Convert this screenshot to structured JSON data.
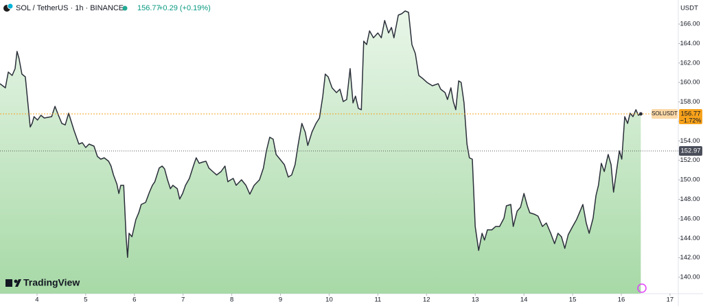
{
  "brand": "TradingView",
  "chart_data": {
    "type": "area",
    "symbol": "SOL / TetherUS · 1h · BINANCE",
    "change_label": "+0.29 (+0.19%)",
    "currency": "USDT",
    "series_label": "SOLUSDT",
    "last_price": 156.77,
    "last_change_label": "−1.72%",
    "reference_price": 152.97,
    "color": "#2a2e39",
    "x": [
      3.24,
      3.35,
      3.41,
      3.49,
      3.55,
      3.59,
      3.63,
      3.69,
      3.76,
      3.86,
      3.9,
      3.94,
      4.01,
      4.08,
      4.15,
      4.3,
      4.37,
      4.44,
      4.51,
      4.58,
      4.65,
      4.76,
      4.86,
      4.93,
      5.0,
      5.07,
      5.17,
      5.24,
      5.31,
      5.38,
      5.47,
      5.52,
      5.57,
      5.64,
      5.68,
      5.72,
      5.78,
      5.83,
      5.86,
      5.89,
      5.95,
      6.03,
      6.09,
      6.14,
      6.23,
      6.31,
      6.37,
      6.42,
      6.51,
      6.57,
      6.62,
      6.68,
      6.74,
      6.79,
      6.88,
      6.93,
      6.99,
      7.05,
      7.13,
      7.22,
      7.27,
      7.33,
      7.41,
      7.47,
      7.53,
      7.61,
      7.69,
      7.78,
      7.86,
      7.92,
      7.98,
      8.03,
      8.09,
      8.2,
      8.29,
      8.37,
      8.46,
      8.57,
      8.65,
      8.71,
      8.78,
      8.85,
      8.91,
      8.99,
      9.08,
      9.16,
      9.23,
      9.3,
      9.36,
      9.44,
      9.51,
      9.56,
      9.65,
      9.73,
      9.8,
      9.87,
      9.92,
      9.98,
      10.06,
      10.15,
      10.22,
      10.29,
      10.36,
      10.43,
      10.49,
      10.54,
      10.6,
      10.66,
      10.71,
      10.77,
      10.83,
      10.91,
      11.0,
      11.07,
      11.14,
      11.22,
      11.28,
      11.33,
      11.42,
      11.49,
      11.56,
      11.63,
      11.7,
      11.77,
      11.84,
      11.93,
      12.01,
      12.12,
      12.24,
      12.29,
      12.38,
      12.43,
      12.5,
      12.55,
      12.6,
      12.66,
      12.71,
      12.77,
      12.83,
      12.88,
      12.94,
      13.0,
      13.07,
      13.14,
      13.19,
      13.25,
      13.34,
      13.42,
      13.5,
      13.59,
      13.64,
      13.73,
      13.78,
      13.86,
      13.93,
      14.0,
      14.07,
      14.12,
      14.21,
      14.29,
      14.38,
      14.46,
      14.55,
      14.63,
      14.7,
      14.77,
      14.84,
      14.91,
      15.0,
      15.08,
      15.14,
      15.21,
      15.28,
      15.34,
      15.42,
      15.48,
      15.53,
      15.59,
      15.65,
      15.73,
      15.79,
      15.84,
      15.9,
      15.96,
      16.01,
      16.07,
      16.13,
      16.18,
      16.24,
      16.3,
      16.35,
      16.4
    ],
    "values": [
      159.87,
      159.45,
      161.07,
      160.72,
      161.42,
      163.19,
      162.48,
      160.86,
      160.58,
      155.43,
      155.79,
      156.49,
      156.14,
      156.63,
      156.35,
      156.49,
      157.55,
      156.63,
      155.79,
      155.64,
      156.84,
      155.08,
      153.67,
      153.81,
      153.32,
      153.67,
      153.46,
      152.4,
      152.12,
      152.26,
      151.91,
      151.42,
      150.5,
      149.58,
      148.6,
      149.44,
      149.44,
      144.16,
      142.04,
      144.51,
      144.16,
      145.92,
      146.62,
      147.47,
      147.68,
      148.74,
      149.44,
      149.8,
      151.21,
      151.42,
      151.13,
      150.01,
      149.09,
      149.44,
      149.09,
      148.03,
      148.6,
      149.44,
      150.15,
      151.56,
      152.26,
      151.7,
      151.84,
      151.91,
      151.21,
      150.85,
      150.5,
      150.85,
      151.42,
      149.8,
      150.01,
      150.15,
      149.44,
      150.01,
      149.44,
      148.53,
      149.44,
      150.01,
      151.21,
      152.97,
      154.38,
      154.17,
      152.61,
      152.12,
      151.56,
      150.29,
      150.5,
      151.56,
      153.53,
      155.79,
      154.87,
      153.53,
      154.94,
      155.79,
      156.35,
      158.6,
      160.86,
      160.58,
      159.45,
      158.96,
      159.31,
      158.04,
      158.25,
      161.42,
      157.9,
      158.6,
      157.34,
      157.2,
      164.24,
      163.89,
      165.3,
      164.59,
      165.09,
      164.59,
      166.36,
      165.09,
      165.65,
      164.59,
      166.92,
      167.06,
      167.34,
      167.2,
      163.89,
      162.97,
      160.72,
      160.37,
      160.01,
      159.66,
      159.87,
      159.31,
      158.96,
      158.25,
      159.45,
      158.04,
      157.2,
      160.16,
      160.01,
      157.9,
      153.67,
      152.26,
      152.12,
      145.21,
      142.75,
      144.51,
      143.81,
      144.86,
      144.86,
      145.21,
      145.21,
      146.06,
      147.33,
      147.47,
      145.21,
      146.77,
      147.19,
      148.6,
      147.33,
      146.62,
      146.48,
      146.27,
      145.21,
      145.57,
      144.51,
      143.45,
      144.51,
      144.16,
      142.96,
      144.37,
      145.21,
      145.92,
      146.62,
      147.47,
      145.57,
      144.51,
      146.06,
      148.39,
      149.44,
      151.7,
      150.85,
      152.61,
      151.56,
      148.74,
      150.85,
      152.97,
      152.12,
      156.49,
      155.79,
      156.84,
      156.49,
      157.2,
      156.63,
      156.77
    ],
    "xlim": [
      3.24,
      17.17
    ],
    "ylim": [
      138.31,
      168.47
    ],
    "xticks": [
      4,
      5,
      6,
      7,
      8,
      9,
      10,
      11,
      12,
      13,
      14,
      15,
      16,
      17
    ],
    "yticks": [
      {
        "value": 140,
        "label": "140.00"
      },
      {
        "value": 142,
        "label": "142.00"
      },
      {
        "value": 144,
        "label": "144.00"
      },
      {
        "value": 146,
        "label": "146.00"
      },
      {
        "value": 148,
        "label": "148.00"
      },
      {
        "value": 150,
        "label": "150.00"
      },
      {
        "value": 152,
        "label": "152.00"
      },
      {
        "value": 154,
        "label": "154.00"
      },
      {
        "value": 156,
        "label": "156.00"
      },
      {
        "value": 158,
        "label": "158.00"
      },
      {
        "value": 160,
        "label": "160.00"
      },
      {
        "value": 162,
        "label": "162.00"
      },
      {
        "value": 164,
        "label": "164.00"
      },
      {
        "value": 166,
        "label": "166.00"
      }
    ],
    "grid": false
  }
}
